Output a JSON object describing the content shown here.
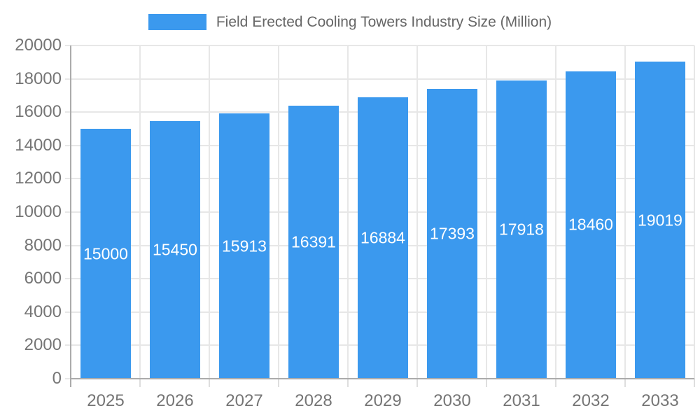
{
  "chart_data": {
    "type": "bar",
    "title": "Field Erected Cooling Towers Industry Size (Million)",
    "legend": [
      "Field Erected Cooling Towers Industry Size (Million)"
    ],
    "legend_position": "top",
    "categories": [
      "2025",
      "2026",
      "2027",
      "2028",
      "2029",
      "2030",
      "2031",
      "2032",
      "2033"
    ],
    "values": [
      15000,
      15450,
      15913,
      16391,
      16884,
      17393,
      17918,
      18460,
      19019
    ],
    "xlabel": "",
    "ylabel": "",
    "ylim": [
      0,
      20000
    ],
    "yticks": [
      0,
      2000,
      4000,
      6000,
      8000,
      10000,
      12000,
      14000,
      16000,
      18000,
      20000
    ],
    "grid": true,
    "colors": {
      "bar": "#3b99ee",
      "value_label": "#ffffff",
      "tick_label": "#757575",
      "legend_text": "#666666",
      "grid_line": "#e7e7e7",
      "axis_border": "#ababab",
      "x_tick_mark": "#dedede",
      "background": "#ffffff"
    }
  }
}
